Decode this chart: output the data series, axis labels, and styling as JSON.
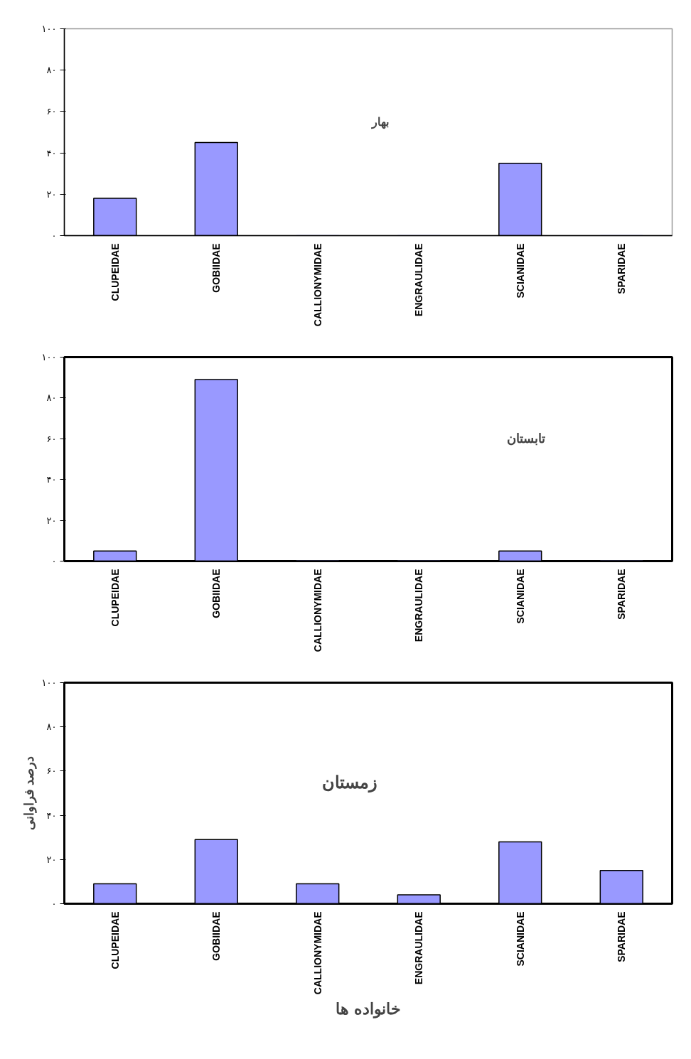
{
  "chart_data": [
    {
      "type": "bar",
      "title": "بهار",
      "categories": [
        "CLUPEIDAE",
        "GOBIIDAE",
        "CALLIONYMIDAE",
        "ENGRAULIDAE",
        "SCIANIDAE",
        "SPARIDAE"
      ],
      "values": [
        18,
        45,
        0,
        0,
        35,
        0
      ],
      "color": "#9999ff",
      "ylim": [
        0,
        100
      ],
      "yticks": [
        {
          "value": 0,
          "label": "۰"
        },
        {
          "value": 20,
          "label": "۲۰"
        },
        {
          "value": 40,
          "label": "۴۰"
        },
        {
          "value": 60,
          "label": "۶۰"
        },
        {
          "value": 80,
          "label": "۸۰"
        },
        {
          "value": 100,
          "label": "۱۰۰"
        }
      ],
      "grid": false
    },
    {
      "type": "bar",
      "title": "تابستان",
      "categories": [
        "CLUPEIDAE",
        "GOBIIDAE",
        "CALLIONYMIDAE",
        "ENGRAULIDAE",
        "SCIANIDAE",
        "SPARIDAE"
      ],
      "values": [
        5,
        89,
        0,
        0,
        5,
        0
      ],
      "color": "#9999ff",
      "ylim": [
        0,
        100
      ],
      "yticks": [
        {
          "value": 0,
          "label": "۰"
        },
        {
          "value": 20,
          "label": "۲۰"
        },
        {
          "value": 40,
          "label": "۴۰"
        },
        {
          "value": 60,
          "label": "۶۰"
        },
        {
          "value": 80,
          "label": "۸۰"
        },
        {
          "value": 100,
          "label": "۱۰۰"
        }
      ],
      "grid": false
    },
    {
      "type": "bar",
      "title": "زمستان",
      "xlabel": "خانواده ها",
      "ylabel": "درصد فراوانی",
      "categories": [
        "CLUPEIDAE",
        "GOBIIDAE",
        "CALLIONYMIDAE",
        "ENGRAULIDAE",
        "SCIANIDAE",
        "SPARIDAE"
      ],
      "values": [
        9,
        29,
        9,
        4,
        28,
        15
      ],
      "color": "#9999ff",
      "ylim": [
        0,
        100
      ],
      "yticks": [
        {
          "value": 0,
          "label": "۰"
        },
        {
          "value": 20,
          "label": "۲۰"
        },
        {
          "value": 40,
          "label": "۴۰"
        },
        {
          "value": 60,
          "label": "۶۰"
        },
        {
          "value": 80,
          "label": "۸۰"
        },
        {
          "value": 100,
          "label": "۱۰۰"
        }
      ],
      "grid": false
    }
  ]
}
